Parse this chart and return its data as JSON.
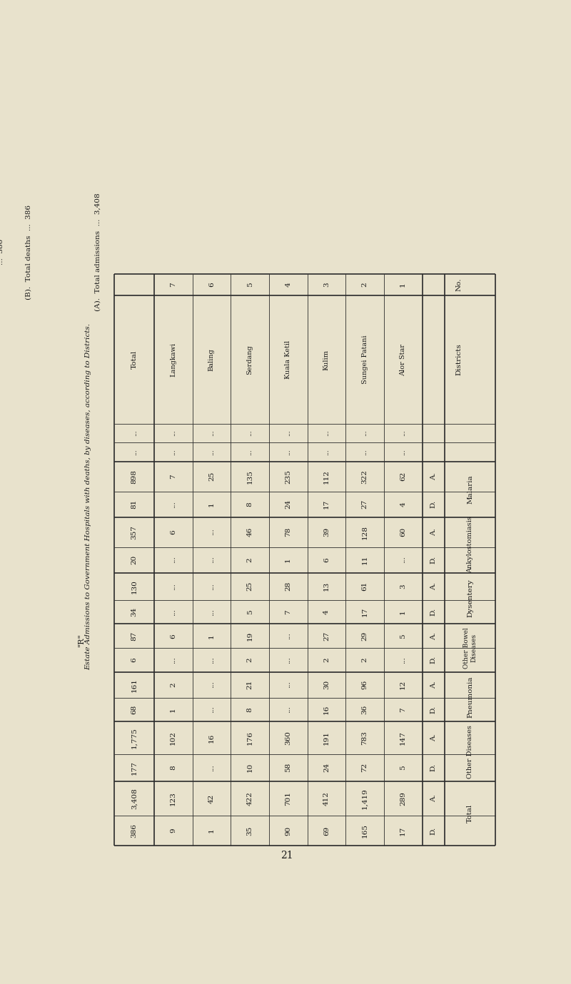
{
  "page_number": "21",
  "title_italic": "Estate Admissions to Government Hospitals with deaths, by diseases, according to Districts.",
  "label_R": "\"R\"",
  "bg_color": "#e8e2cc",
  "text_color": "#1a1a1a",
  "line_color": "#2a2a2a",
  "rows": [
    {
      "no": "1",
      "district": "Alor Star",
      "mal_a": "62",
      "mal_d": "4",
      "ank_a": "60",
      "ank_d": "...",
      "dys_a": "3",
      "dys_d": "1",
      "obd_a": "5",
      "obd_d": "...",
      "pneu_a": "12",
      "pneu_d": "7",
      "oth_a": "147",
      "oth_d": "5",
      "tot_a": "289",
      "tot_d": "17"
    },
    {
      "no": "2",
      "district": "Sungei Patani",
      "mal_a": "322",
      "mal_d": "27",
      "ank_a": "128",
      "ank_d": "11",
      "dys_a": "61",
      "dys_d": "17",
      "obd_a": "29",
      "obd_d": "2",
      "pneu_a": "96",
      "pneu_d": "36",
      "oth_a": "783",
      "oth_d": "72",
      "tot_a": "1,419",
      "tot_d": "165"
    },
    {
      "no": "3",
      "district": "Kulim",
      "mal_a": "112",
      "mal_d": "17",
      "ank_a": "39",
      "ank_d": "6",
      "dys_a": "13",
      "dys_d": "4",
      "obd_a": "27",
      "obd_d": "2",
      "pneu_a": "30",
      "pneu_d": "16",
      "oth_a": "191",
      "oth_d": "24",
      "tot_a": "412",
      "tot_d": "69"
    },
    {
      "no": "4",
      "district": "Kuala Ketil",
      "mal_a": "235",
      "mal_d": "24",
      "ank_a": "78",
      "ank_d": "1",
      "dys_a": "28",
      "dys_d": "7",
      "obd_a": "...",
      "obd_d": "...",
      "pneu_a": "...",
      "pneu_d": "...",
      "oth_a": "360",
      "oth_d": "58",
      "tot_a": "701",
      "tot_d": "90"
    },
    {
      "no": "5",
      "district": "Serdang",
      "mal_a": "135",
      "mal_d": "8",
      "ank_a": "46",
      "ank_d": "2",
      "dys_a": "25",
      "dys_d": "5",
      "obd_a": "19",
      "obd_d": "2",
      "pneu_a": "21",
      "pneu_d": "8",
      "oth_a": "176",
      "oth_d": "10",
      "tot_a": "422",
      "tot_d": "35"
    },
    {
      "no": "6",
      "district": "Baling",
      "mal_a": "25",
      "mal_d": "1",
      "ank_a": "...",
      "ank_d": "...",
      "dys_a": "...",
      "dys_d": "...",
      "obd_a": "1",
      "obd_d": "...",
      "pneu_a": "...",
      "pneu_d": "...",
      "oth_a": "16",
      "oth_d": "...",
      "tot_a": "42",
      "tot_d": "1"
    },
    {
      "no": "7",
      "district": "Langkawi",
      "mal_a": "7",
      "mal_d": "...",
      "ank_a": "6",
      "ank_d": "...",
      "dys_a": "...",
      "dys_d": "...",
      "obd_a": "6",
      "obd_d": "...",
      "pneu_a": "2",
      "pneu_d": "1",
      "oth_a": "102",
      "oth_d": "8",
      "tot_a": "123",
      "tot_d": "9"
    }
  ],
  "totals": {
    "district": "Total",
    "mal_a": "898",
    "mal_d": "81",
    "ank_a": "357",
    "ank_d": "20",
    "dys_a": "130",
    "dys_d": "34",
    "obd_a": "87",
    "obd_d": "6",
    "pneu_a": "161",
    "pneu_d": "68",
    "oth_a": "1,775",
    "oth_d": "177",
    "tot_a": "3,408",
    "tot_d": "386"
  },
  "footer_a": "(A).  Total admissions  ...  3,408",
  "footer_b": "(B).  Total deaths  ...  386"
}
